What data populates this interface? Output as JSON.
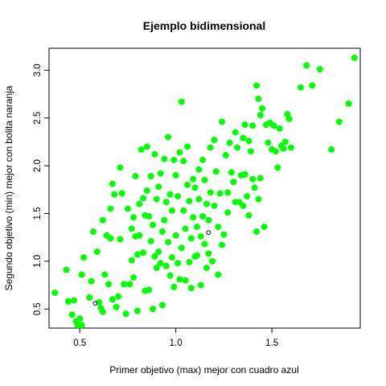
{
  "chart_data": {
    "type": "scatter",
    "title": "Ejemplo bidimensional",
    "xlabel": "Primer objetivo (max) mejor con cuadro azul",
    "ylabel": "Segundo objetivo (min) mejor con bolita naranja",
    "xlim": [
      0.34,
      1.96
    ],
    "ylim": [
      0.3,
      3.23
    ],
    "xticks": [
      "0.5",
      "1.0",
      "1.5"
    ],
    "xtick_values": [
      0.5,
      1.0,
      1.5
    ],
    "yticks": [
      "0.5",
      "1.0",
      "1.5",
      "2.0",
      "2.5",
      "3.0"
    ],
    "ytick_values": [
      0.5,
      1.0,
      1.5,
      2.0,
      2.5,
      3.0
    ],
    "grid": false,
    "legend": "none",
    "series": [
      {
        "color": "#00ff00",
        "marker": "filled-circle",
        "points": [
          [
            0.37,
            0.67
          ],
          [
            0.43,
            0.91
          ],
          [
            0.44,
            0.58
          ],
          [
            0.46,
            0.44
          ],
          [
            0.47,
            0.59
          ],
          [
            0.48,
            0.37
          ],
          [
            0.49,
            0.33
          ],
          [
            0.5,
            0.4
          ],
          [
            0.51,
            0.33
          ],
          [
            0.51,
            0.86
          ],
          [
            0.52,
            1.04
          ],
          [
            0.55,
            0.62
          ],
          [
            0.56,
            0.79
          ],
          [
            0.57,
            1.31
          ],
          [
            0.59,
            1.1
          ],
          [
            0.6,
            0.57
          ],
          [
            0.61,
            0.51
          ],
          [
            0.62,
            0.47
          ],
          [
            0.62,
            1.43
          ],
          [
            0.63,
            0.86
          ],
          [
            0.64,
            1.27
          ],
          [
            0.65,
            0.76
          ],
          [
            0.66,
            1.24
          ],
          [
            0.66,
            1.55
          ],
          [
            0.67,
            0.6
          ],
          [
            0.67,
            1.81
          ],
          [
            0.68,
            1.7
          ],
          [
            0.69,
            0.52
          ],
          [
            0.7,
            0.63
          ],
          [
            0.71,
            1.98
          ],
          [
            0.71,
            1.23
          ],
          [
            0.72,
            1.71
          ],
          [
            0.73,
            0.76
          ],
          [
            0.74,
            0.45
          ],
          [
            0.75,
            1.55
          ],
          [
            0.76,
            0.76
          ],
          [
            0.77,
            1.01
          ],
          [
            0.77,
            1.34
          ],
          [
            0.78,
            0.83
          ],
          [
            0.78,
            1.46
          ],
          [
            0.79,
            1.26
          ],
          [
            0.79,
            1.89
          ],
          [
            0.8,
            1.07
          ],
          [
            0.8,
            0.48
          ],
          [
            0.81,
            1.6
          ],
          [
            0.81,
            1.27
          ],
          [
            0.82,
            2.17
          ],
          [
            0.83,
            1.09
          ],
          [
            0.83,
            1.66
          ],
          [
            0.84,
            1.48
          ],
          [
            0.84,
            0.69
          ],
          [
            0.85,
            2.2
          ],
          [
            0.85,
            1.74
          ],
          [
            0.86,
            0.7
          ],
          [
            0.86,
            1.47
          ],
          [
            0.87,
            1.89
          ],
          [
            0.87,
            1.21
          ],
          [
            0.88,
            0.5
          ],
          [
            0.88,
            1.38
          ],
          [
            0.89,
            1.05
          ],
          [
            0.89,
            2.12
          ],
          [
            0.9,
            0.93
          ],
          [
            0.9,
            1.65
          ],
          [
            0.91,
            1.78
          ],
          [
            0.91,
            1.1
          ],
          [
            0.92,
            0.98
          ],
          [
            0.92,
            1.92
          ],
          [
            0.93,
            1.31
          ],
          [
            0.93,
            0.54
          ],
          [
            0.94,
            2.07
          ],
          [
            0.94,
            1.43
          ],
          [
            0.95,
            1.62
          ],
          [
            0.95,
            0.95
          ],
          [
            0.96,
            1.2
          ],
          [
            0.96,
            2.3
          ],
          [
            0.97,
            0.85
          ],
          [
            0.97,
            1.7
          ],
          [
            0.98,
            1.53
          ],
          [
            0.98,
            1.04
          ],
          [
            0.99,
            2.06
          ],
          [
            0.99,
            0.73
          ],
          [
            1.0,
            1.9
          ],
          [
            1.0,
            1.27
          ],
          [
            1.01,
            0.98
          ],
          [
            1.01,
            1.68
          ],
          [
            1.02,
            2.14
          ],
          [
            1.02,
            0.81
          ],
          [
            1.03,
            2.67
          ],
          [
            1.03,
            1.14
          ],
          [
            1.04,
            1.53
          ],
          [
            1.04,
            2.05
          ],
          [
            1.05,
            0.8
          ],
          [
            1.05,
            1.34
          ],
          [
            1.06,
            1.8
          ],
          [
            1.06,
            2.2
          ],
          [
            1.07,
            0.99
          ],
          [
            1.07,
            1.63
          ],
          [
            1.08,
            1.24
          ],
          [
            1.08,
            0.72
          ],
          [
            1.09,
            1.86
          ],
          [
            1.09,
            1.46
          ],
          [
            1.1,
            1.05
          ],
          [
            1.1,
            1.77
          ],
          [
            1.11,
            1.36
          ],
          [
            1.11,
            1.06
          ],
          [
            1.12,
            1.65
          ],
          [
            1.12,
            1.96
          ],
          [
            1.13,
            1.26
          ],
          [
            1.13,
            0.75
          ],
          [
            1.14,
            1.47
          ],
          [
            1.14,
            2.06
          ],
          [
            1.15,
            1.18
          ],
          [
            1.15,
            1.85
          ],
          [
            1.16,
            0.93
          ],
          [
            1.16,
            1.6
          ],
          [
            1.17,
            1.08
          ],
          [
            1.17,
            1.43
          ],
          [
            1.18,
            2.19
          ],
          [
            1.18,
            1.72
          ],
          [
            1.19,
            1.0
          ],
          [
            1.2,
            2.27
          ],
          [
            1.2,
            1.58
          ],
          [
            1.21,
            1.94
          ],
          [
            1.22,
            1.36
          ],
          [
            1.22,
            0.86
          ],
          [
            1.23,
            1.71
          ],
          [
            1.24,
            1.17
          ],
          [
            1.24,
            2.46
          ],
          [
            1.25,
            1.28
          ],
          [
            1.26,
            2.11
          ],
          [
            1.27,
            1.72
          ],
          [
            1.27,
            1.51
          ],
          [
            1.28,
            2.24
          ],
          [
            1.29,
            1.93
          ],
          [
            1.3,
            1.83
          ],
          [
            1.31,
            2.35
          ],
          [
            1.31,
            1.62
          ],
          [
            1.32,
            2.19
          ],
          [
            1.33,
            1.62
          ],
          [
            1.34,
            1.9
          ],
          [
            1.35,
            2.29
          ],
          [
            1.35,
            1.58
          ],
          [
            1.36,
            2.43
          ],
          [
            1.36,
            1.91
          ],
          [
            1.37,
            1.68
          ],
          [
            1.38,
            1.48
          ],
          [
            1.38,
            2.26
          ],
          [
            1.39,
            2.15
          ],
          [
            1.4,
            1.86
          ],
          [
            1.4,
            2.42
          ],
          [
            1.41,
            1.77
          ],
          [
            1.42,
            2.84
          ],
          [
            1.42,
            1.31
          ],
          [
            1.43,
            2.7
          ],
          [
            1.43,
            1.65
          ],
          [
            1.44,
            2.53
          ],
          [
            1.44,
            1.87
          ],
          [
            1.45,
            2.6
          ],
          [
            1.46,
            1.36
          ],
          [
            1.47,
            2.43
          ],
          [
            1.48,
            2.24
          ],
          [
            1.49,
            2.45
          ],
          [
            1.5,
            2.17
          ],
          [
            1.51,
            2.42
          ],
          [
            1.52,
            2.15
          ],
          [
            1.53,
            1.98
          ],
          [
            1.54,
            2.39
          ],
          [
            1.55,
            2.21
          ],
          [
            1.56,
            2.18
          ],
          [
            1.57,
            2.25
          ],
          [
            1.58,
            2.54
          ],
          [
            1.59,
            2.49
          ],
          [
            1.6,
            2.19
          ],
          [
            1.65,
            2.82
          ],
          [
            1.68,
            3.05
          ],
          [
            1.71,
            2.84
          ],
          [
            1.75,
            3.01
          ],
          [
            1.81,
            2.17
          ],
          [
            1.85,
            2.46
          ],
          [
            1.9,
            2.65
          ],
          [
            1.93,
            3.13
          ]
        ]
      },
      {
        "color": "#000000",
        "marker": "open-circle",
        "points": [
          [
            0.58,
            0.56
          ],
          [
            1.17,
            1.3
          ]
        ]
      }
    ]
  }
}
